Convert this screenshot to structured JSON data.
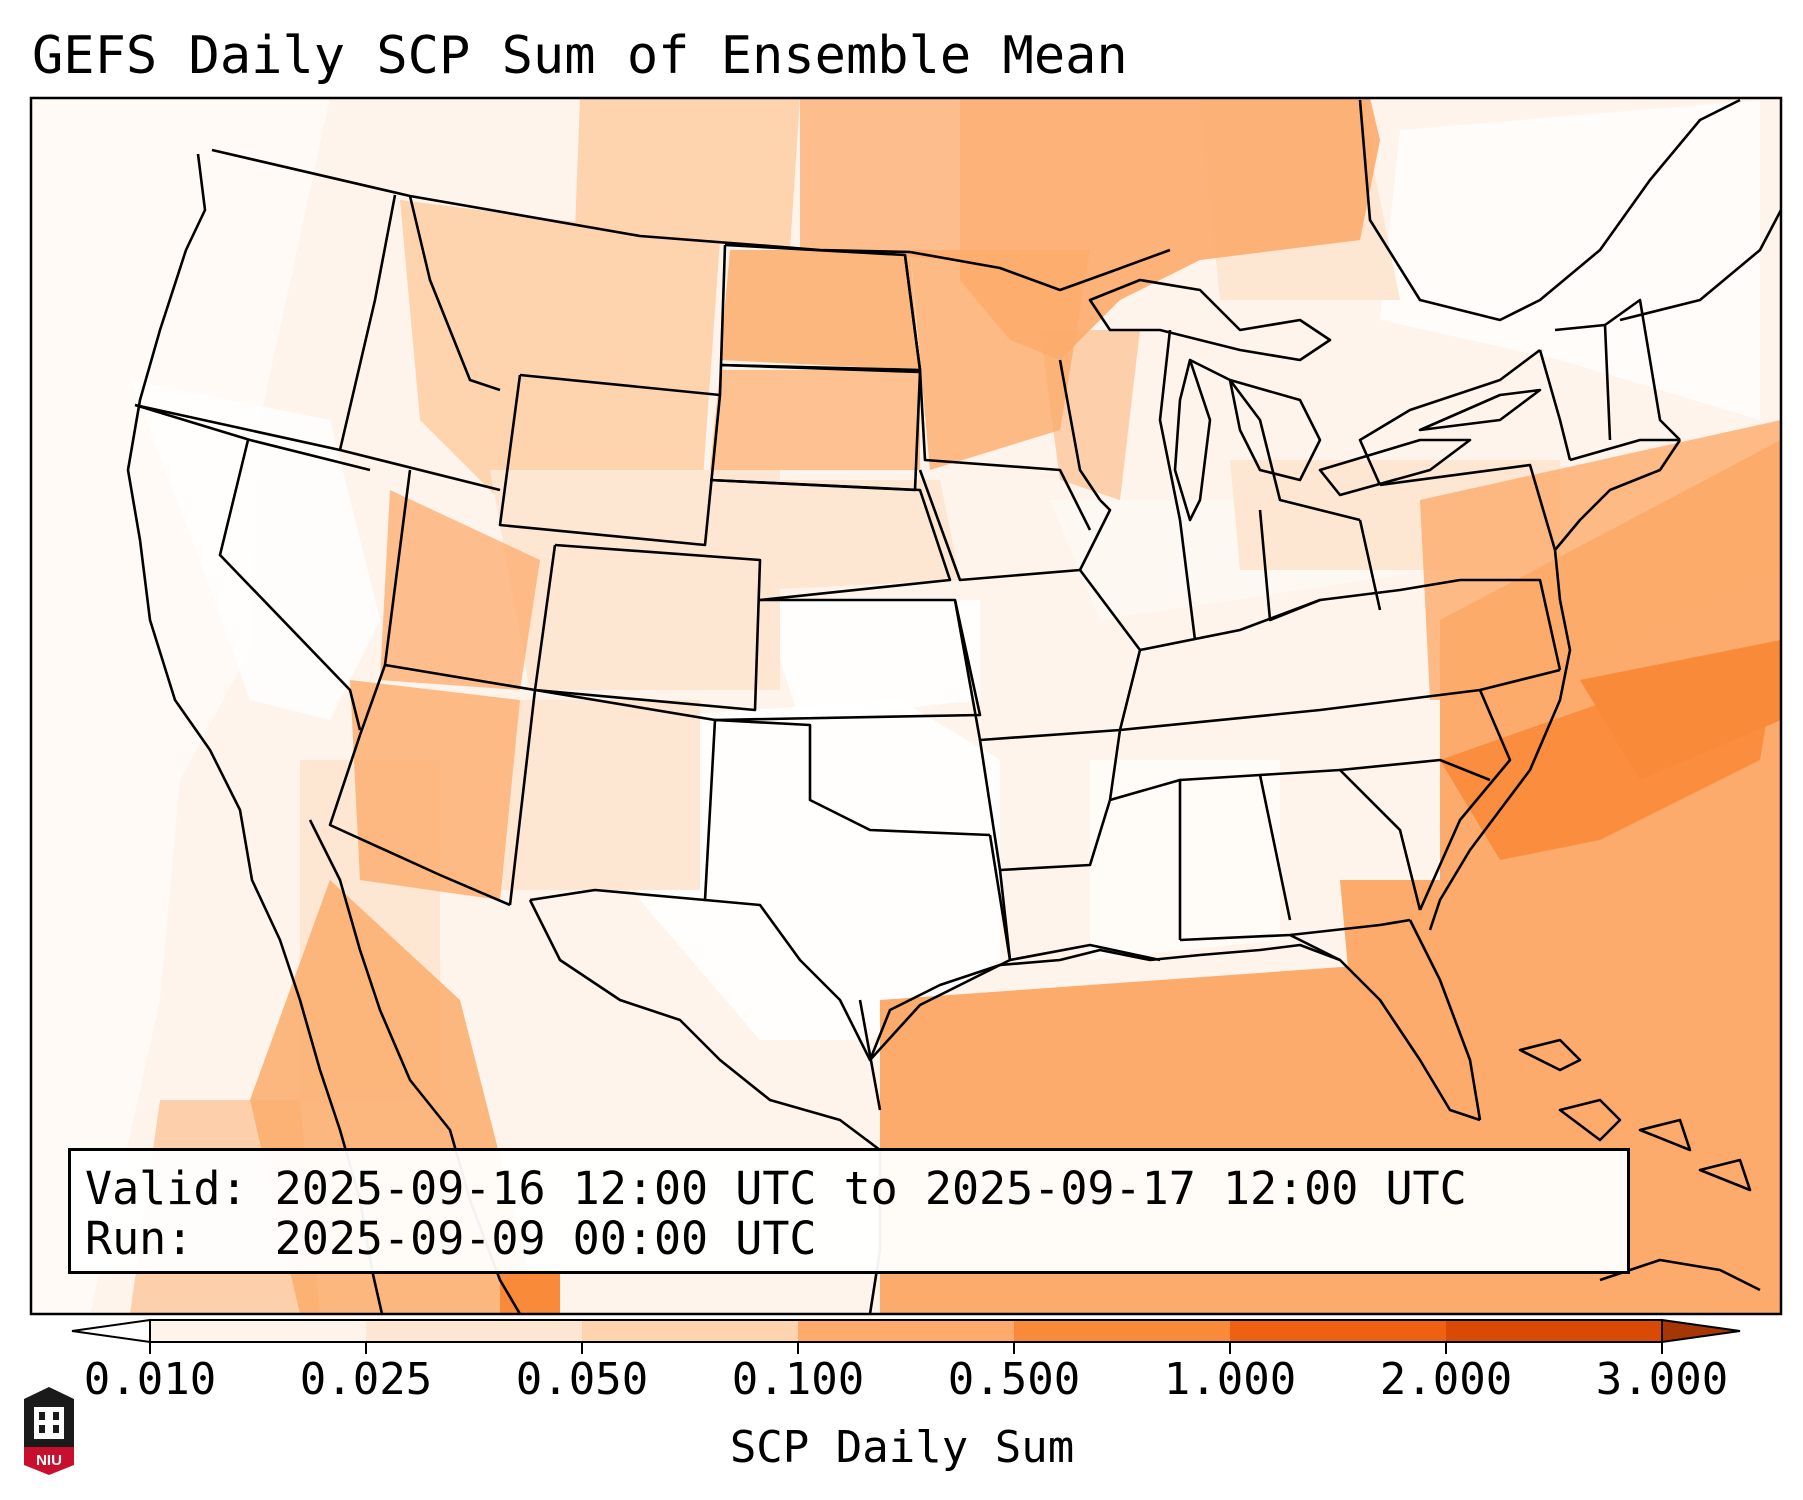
{
  "title": "GEFS Daily SCP Sum of Ensemble Mean",
  "info": {
    "valid_label": "Valid:",
    "valid_value": "2025-09-16 12:00 UTC to 2025-09-17 12:00 UTC",
    "run_label": "Run:",
    "run_value": "2025-09-09 00:00 UTC"
  },
  "colorbar": {
    "label": "SCP Daily Sum",
    "ticks": [
      "0.010",
      "0.025",
      "0.050",
      "0.100",
      "0.500",
      "1.000",
      "2.000",
      "3.000"
    ],
    "colors": [
      "#fef4eb",
      "#fde6d2",
      "#fdd4ae",
      "#fcab6c",
      "#f98a3a",
      "#ef6112",
      "#d84a05"
    ],
    "under_color": "#ffffff",
    "over_color": "#a63603"
  },
  "logo": {
    "text": "NIU",
    "icon": "university-seal-icon"
  }
}
